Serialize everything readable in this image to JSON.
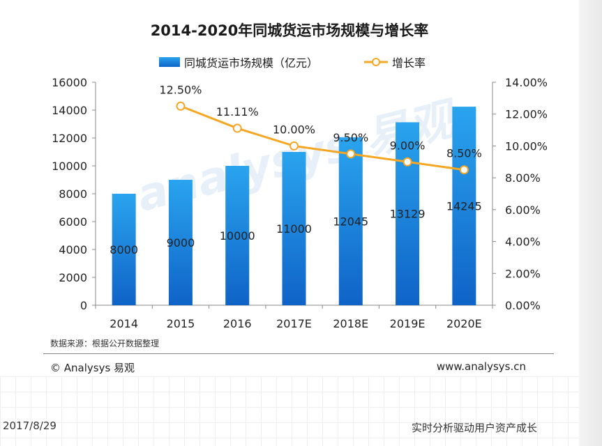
{
  "title": "2014-2020年同城货运市场规模与增长率",
  "legend": {
    "bar_label": "同城货运市场规模（亿元）",
    "line_label": "增长率"
  },
  "colors": {
    "bar_top": "#2aa4ee",
    "bar_bottom": "#0f63c7",
    "line": "#f5a623",
    "axis": "#888888"
  },
  "chart_data": {
    "type": "bar",
    "categories": [
      "2014",
      "2015",
      "2016",
      "2017E",
      "2018E",
      "2019E",
      "2020E"
    ],
    "series": [
      {
        "name": "同城货运市场规模（亿元）",
        "type": "bar",
        "axis": "left",
        "values": [
          8000,
          9000,
          10000,
          11000,
          12045,
          13129,
          14245
        ],
        "labels": [
          "8000",
          "9000",
          "10000",
          "11000",
          "12045",
          "13129",
          "14245"
        ]
      },
      {
        "name": "增长率",
        "type": "line",
        "axis": "right",
        "values": [
          null,
          12.5,
          11.11,
          10.0,
          9.5,
          9.0,
          8.5
        ],
        "labels": [
          "",
          "12.50%",
          "11.11%",
          "10.00%",
          "9.50%",
          "9.00%",
          "8.50%"
        ]
      }
    ],
    "ylim_left": [
      0,
      16000
    ],
    "yticks_left": [
      "0",
      "2000",
      "4000",
      "6000",
      "8000",
      "10000",
      "12000",
      "14000",
      "16000"
    ],
    "ylim_right": [
      0,
      14
    ],
    "yticks_right": [
      "0.00%",
      "2.00%",
      "4.00%",
      "6.00%",
      "8.00%",
      "10.00%",
      "12.00%",
      "14.00%"
    ],
    "legend_position": "top-center",
    "grid": false
  },
  "source": "数据来源：根据公开数据整理",
  "brand": "© Analysys 易观",
  "url": "www.analysys.cn",
  "watermark": "analysys 易观",
  "footer": {
    "date": "2017/8/29",
    "slogan": "实时分析驱动用户资产成长"
  }
}
